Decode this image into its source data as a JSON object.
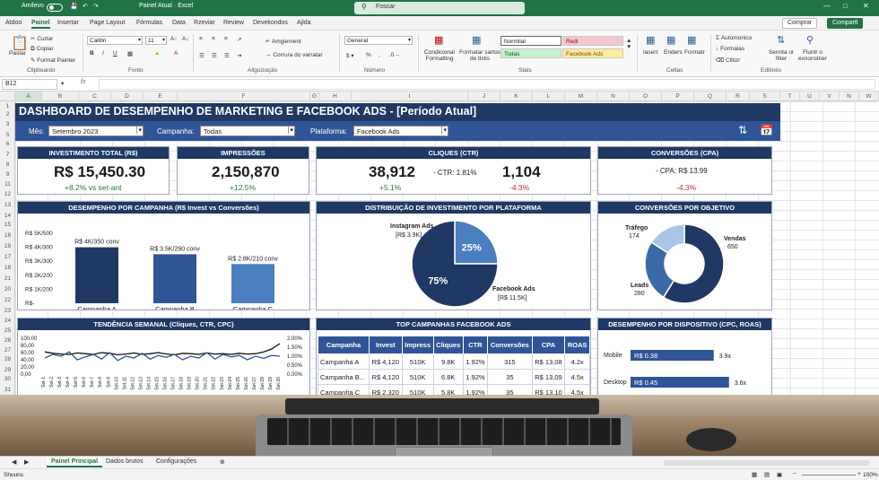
{
  "title_bar": {
    "autosave": "Amilevo",
    "title": "Painel Atual · Excel",
    "search_placeholder": "Foscar"
  },
  "menu": {
    "items": [
      "Atdoo",
      "Painel",
      "Insertar",
      "Page Layout",
      "Fórmulas",
      "Data",
      "Rzeviar",
      "Review",
      "Devekondos",
      "Ajlda"
    ],
    "active": "Painel",
    "comment": "Comprar",
    "share": "Compartl"
  },
  "ribbon": {
    "clipboard": {
      "paste": "Pastar",
      "cut": "Curtar",
      "copy": "Copiar",
      "painter": "Format Painter",
      "label": "Cllpboardo"
    },
    "font": {
      "name": "Calibri",
      "size": "11",
      "label": "Fonto"
    },
    "alignment": {
      "wrap": "Amgiement",
      "merge": "Corrura do varratar",
      "label": "Allguizaçäo"
    },
    "number": {
      "format": "General",
      "label": "Número"
    },
    "styles": {
      "conditional": "Condicional Formatting",
      "format_table": "Formatar sartos de tistis",
      "normal": "Normlial",
      "bad": "Redi",
      "good": "Todas",
      "neutral": "Facebook Ads",
      "label": "Stats"
    },
    "cells": {
      "insert": "Iasert",
      "delete": "Enders",
      "format": "Formatr",
      "label": "Celtas"
    },
    "editing": {
      "autosum": "Automonico",
      "fill": "Formalas",
      "clear": "Clltizr",
      "sort": "Sennta or filter",
      "find": "Fluntr o exnonstner",
      "label": "Editinés"
    }
  },
  "formula_bar": {
    "cell": "B12",
    "fx": "fx"
  },
  "columns": [
    "A",
    "B",
    "C",
    "D",
    "E",
    "F",
    "G",
    "H",
    "I",
    "J",
    "K",
    "L",
    "M",
    "N",
    "O",
    "P",
    "Q",
    "R",
    "S",
    "T",
    "U",
    "V",
    "N",
    "W"
  ],
  "rows": [
    "1",
    "2",
    "3",
    "5",
    "6",
    "7",
    "8",
    "9",
    "11",
    "12",
    "13",
    "14",
    "15",
    "16",
    "19",
    "17",
    "18",
    "21",
    "20",
    "22",
    "23",
    "24",
    "25",
    "26",
    "27",
    "28",
    "29",
    "30",
    "31"
  ],
  "dashboard": {
    "title": "DASHBOARD DE DESEMPENHO DE MARKETING E FACEBOOK ADS - [Período Atual]",
    "filters": {
      "month_label": "Mês:",
      "month_value": "Setembro 2023",
      "campaign_label": "Campanha:",
      "campaign_value": "Todas",
      "platform_label": "Plataforma:",
      "platform_value": "Facebook Ads"
    },
    "kpis": {
      "investment": {
        "title": "INVESTIMENTO TOTAL (R$)",
        "value": "R$ 15,450.30",
        "delta": "+8.2% vs set-ant"
      },
      "impressions": {
        "title": "IMPRESSÕES",
        "value": "2,150,870",
        "delta": "+12.5%"
      },
      "clicks": {
        "title": "CLIQUES (CTR)",
        "value": "38,912",
        "delta": "+5.1%",
        "ctr": "- CTR: 1.81%",
        "value2": "1,104",
        "delta2": "-4.3%"
      },
      "conversions": {
        "title": "CONVERSÕES (CPA)",
        "cpa": "- CPA: R$ 13.99",
        "delta": "-4.3%"
      }
    },
    "campaign_chart": {
      "title": "DESEMPENHO POR CAMPANHA (R$ Invest vs Conversões)"
    },
    "platform_chart": {
      "title": "DISTRIBUIÇÃO DE INVESTIMENTO POR PLATAFORMA"
    },
    "objective_chart": {
      "title": "CONVERSÕES POR OBJETIVO"
    },
    "trend_chart": {
      "title": "TENDÊNCIA SEMANAL (Cliques, CTR, CPC)"
    },
    "top_table": {
      "title": "TOP CAMPANHAS FACEBOOK ADS",
      "headers": [
        "Campanha",
        "Invest",
        "Impress",
        "Cliques",
        "CTR",
        "Conversões",
        "CPA",
        "ROAS"
      ],
      "rows": [
        [
          "Campanha A",
          "R$ 4,120",
          "510K",
          "9.8K",
          "1.92%",
          "315",
          "R$ 13,08",
          "4.2x"
        ],
        [
          "Campanha B...",
          "R$ 4,120",
          "510K",
          "6.8K",
          "1.92%",
          "35",
          "R$ 13,09",
          "4.5x"
        ],
        [
          "Campanha C",
          "R$ 2,320",
          "510K",
          "5.8K",
          "1.92%",
          "35",
          "R$ 13,10",
          "4.5x"
        ]
      ]
    },
    "device_chart": {
      "title": "DESEMPENHO POR DISPOSITIVO (CPC, ROAS)"
    }
  },
  "chart_data": [
    {
      "type": "bar",
      "title": "DESEMPENHO POR CAMPANHA (R$ Invest vs Conversões)",
      "categories": [
        "Campanha A",
        "Campanha B",
        "Campanha C"
      ],
      "values": [
        4000,
        3500,
        2800
      ],
      "data_labels": [
        "R$ 4K/350 conv",
        "R$ 3.5K/290 conv",
        "R$ 2.8K/210 conv"
      ],
      "yticks": [
        "R$ 5K/500",
        "R$ 4K/300",
        "R$ 3K/300",
        "R$ 2K/200",
        "R$ 1K/200",
        "R$-"
      ],
      "ylim": [
        0,
        5000
      ],
      "colors": [
        "#1f3864",
        "#2f5597",
        "#4a7ebf"
      ]
    },
    {
      "type": "pie",
      "title": "DISTRIBUIÇÃO DE INVESTIMENTO POR PLATAFORMA",
      "slices": [
        {
          "name": "Instagram Ads",
          "label": "[R$ 3.9K]",
          "value": 25,
          "pct": "25%",
          "color": "#4a7ebf"
        },
        {
          "name": "Facebook Ads",
          "label": "[R$ 11.5K]",
          "value": 75,
          "pct": "75%",
          "color": "#1f3864"
        }
      ]
    },
    {
      "type": "pie",
      "title": "CONVERSÕES POR OBJETIVO",
      "donut": true,
      "slices": [
        {
          "name": "Vendas",
          "value": 650,
          "color": "#1f3864"
        },
        {
          "name": "Leads",
          "value": 280,
          "color": "#3b6aa8"
        },
        {
          "name": "Tráfego",
          "value": 174,
          "color": "#a9c4e6"
        }
      ]
    },
    {
      "type": "line",
      "title": "TENDÊNCIA SEMANAL (Cliques, CTR, CPC)",
      "x": [
        "Set-1",
        "Set-2",
        "Set-3",
        "Set-4",
        "Set-5",
        "Set-6",
        "Set-7",
        "Set-8",
        "Set-9",
        "Set-10",
        "Set-11",
        "Set-12",
        "Set-13",
        "Set-14",
        "Set-15",
        "Set-16",
        "Set-17",
        "Set-18",
        "Set-19",
        "Set-20",
        "Set-21",
        "Set-22",
        "Set-23",
        "Set-24",
        "Set-25",
        "Set-26",
        "Set-27",
        "Set-28",
        "Set-29",
        "Set-30"
      ],
      "yticks_left": [
        "100,00",
        "80,00",
        "60,00",
        "40,00",
        "20,00",
        "0,00"
      ],
      "yticks_right": [
        "2.00%",
        "1.50%",
        "1.00%",
        "0.50%",
        "0.00%"
      ],
      "ylim": [
        0,
        100
      ],
      "series": [
        {
          "values": [
            62,
            58,
            56,
            55,
            59,
            57,
            55,
            60,
            58,
            54,
            56,
            59,
            55,
            57,
            60,
            56,
            54,
            58,
            57,
            55,
            59,
            56,
            57,
            55,
            58,
            56,
            57,
            62,
            70,
            85
          ],
          "color": "#111111"
        },
        {
          "values": [
            45,
            55,
            50,
            62,
            40,
            48,
            55,
            42,
            60,
            38,
            50,
            45,
            58,
            42,
            52,
            47,
            55,
            40,
            50,
            45,
            60,
            42,
            55,
            48,
            52,
            40,
            50,
            44,
            52,
            50
          ],
          "color": "#2f5597"
        }
      ]
    },
    {
      "type": "bar",
      "title": "DESEMPENHO POR DISPOSITIVO (CPC, ROAS)",
      "categories": [
        "Mobile",
        "Desktop"
      ],
      "values": [
        0.38,
        0.45
      ],
      "data_labels": [
        "R$ 0.38",
        "R$ 0.45"
      ],
      "roas": [
        "3.9x",
        "3.6x"
      ],
      "color": "#2f5597"
    }
  ],
  "sheet_tabs": {
    "items": [
      "Painel Principal",
      "Dados brutos",
      "Configurações"
    ],
    "active": "Painel Principal"
  },
  "status": {
    "left": "Shuuns",
    "zoom": "100%"
  }
}
